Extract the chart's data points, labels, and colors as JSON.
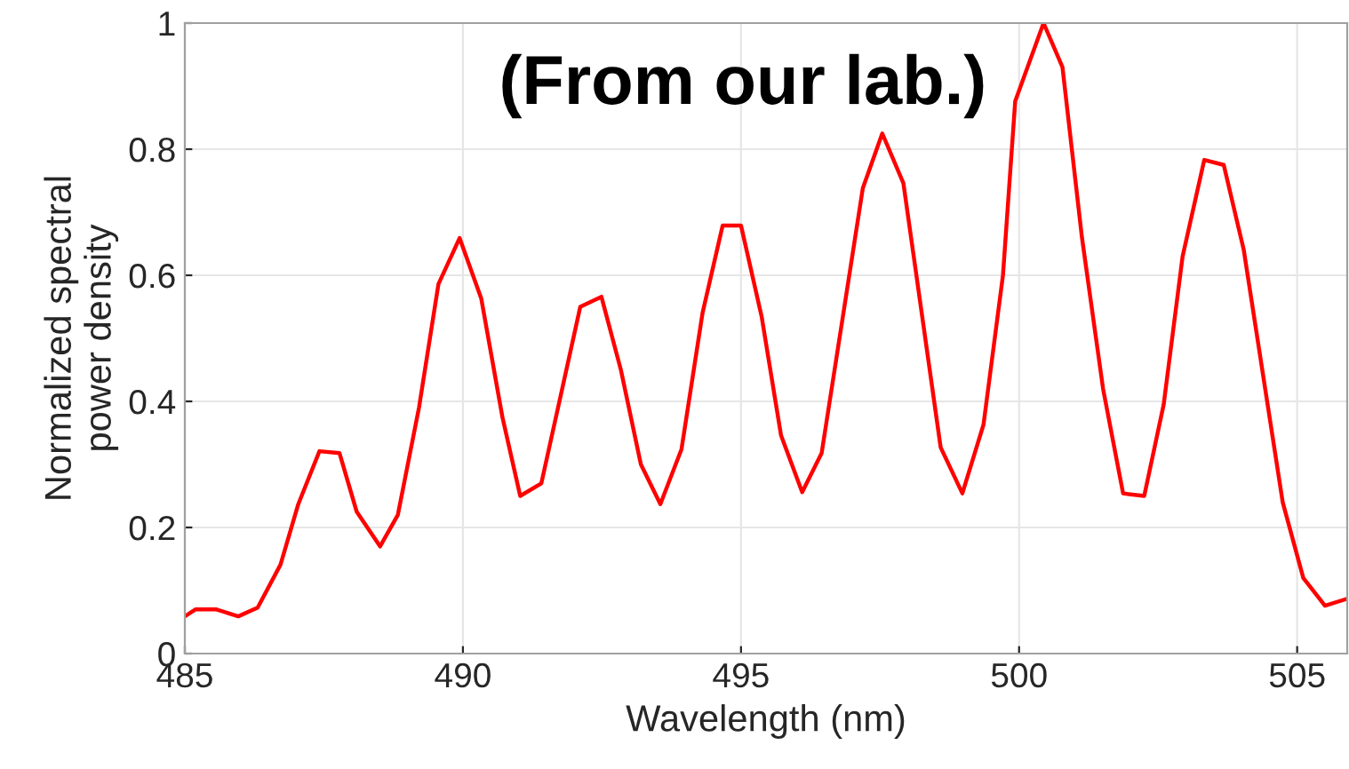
{
  "chart_data": {
    "type": "line",
    "xlabel": "Wavelength (nm)",
    "ylabel": "Normalized spectral\npower density",
    "annotations": [
      "(From our lab.)"
    ],
    "xlim": [
      485,
      505.9
    ],
    "ylim": [
      0,
      1
    ],
    "xticks": [
      485,
      490,
      495,
      500,
      505
    ],
    "yticks": [
      0,
      0.2,
      0.4,
      0.6,
      0.8,
      1
    ],
    "grid": true,
    "marker": "none",
    "line_style": "solid",
    "series": [
      {
        "color": "#ff0000",
        "x": [
          485.0,
          485.19,
          485.57,
          485.96,
          486.31,
          486.72,
          487.04,
          487.42,
          487.78,
          488.09,
          488.51,
          488.83,
          489.21,
          489.56,
          489.94,
          490.33,
          490.71,
          491.03,
          491.41,
          492.11,
          492.49,
          492.84,
          493.2,
          493.55,
          493.93,
          494.31,
          494.67,
          495.0,
          495.37,
          495.72,
          496.1,
          496.45,
          497.19,
          497.54,
          497.92,
          498.59,
          498.98,
          499.36,
          499.71,
          499.93,
          500.44,
          500.78,
          501.13,
          501.51,
          501.87,
          502.25,
          502.6,
          502.94,
          503.33,
          503.68,
          504.04,
          504.74,
          505.11,
          505.5,
          505.9
        ],
        "values": [
          0.059,
          0.07,
          0.07,
          0.059,
          0.073,
          0.141,
          0.237,
          0.321,
          0.318,
          0.225,
          0.17,
          0.22,
          0.39,
          0.586,
          0.659,
          0.563,
          0.375,
          0.25,
          0.27,
          0.55,
          0.566,
          0.45,
          0.3,
          0.237,
          0.324,
          0.541,
          0.679,
          0.679,
          0.535,
          0.346,
          0.256,
          0.318,
          0.738,
          0.825,
          0.746,
          0.327,
          0.254,
          0.363,
          0.6,
          0.876,
          1.0,
          0.93,
          0.66,
          0.42,
          0.254,
          0.25,
          0.395,
          0.63,
          0.783,
          0.775,
          0.64,
          0.24,
          0.12,
          0.076,
          0.087
        ]
      }
    ]
  }
}
